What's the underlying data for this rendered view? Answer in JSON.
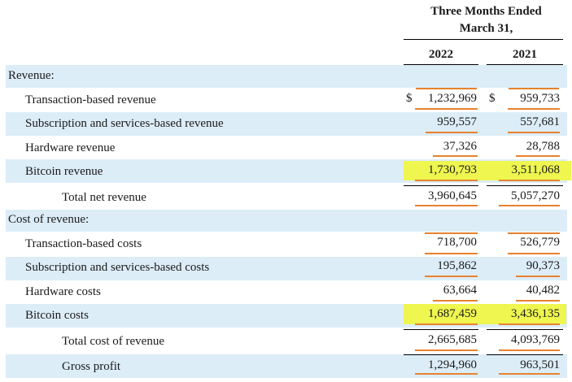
{
  "header": {
    "line1": "Three Months Ended",
    "line2": "March 31,",
    "col_2022": "2022",
    "col_2021": "2021"
  },
  "sections": {
    "revenue_label": "Revenue:",
    "cost_label": "Cost of revenue:"
  },
  "currency_symbol": "$",
  "rows": [
    {
      "label": "Transaction-based revenue",
      "v2022": "1,232,969",
      "v2021": "959,733"
    },
    {
      "label": "Subscription and services-based revenue",
      "v2022": "959,557",
      "v2021": "557,681"
    },
    {
      "label": "Hardware revenue",
      "v2022": "37,326",
      "v2021": "28,788"
    },
    {
      "label": "Bitcoin revenue",
      "v2022": "1,730,793",
      "v2021": "3,511,068"
    },
    {
      "label": "Total net revenue",
      "v2022": "3,960,645",
      "v2021": "5,057,270"
    },
    {
      "label": "Transaction-based costs",
      "v2022": "718,700",
      "v2021": "526,779"
    },
    {
      "label": "Subscription and services-based costs",
      "v2022": "195,862",
      "v2021": "90,373"
    },
    {
      "label": "Hardware costs",
      "v2022": "63,664",
      "v2021": "40,482"
    },
    {
      "label": "Bitcoin costs",
      "v2022": "1,687,459",
      "v2021": "3,436,135"
    },
    {
      "label": "Total cost of revenue",
      "v2022": "2,665,685",
      "v2021": "4,093,769"
    },
    {
      "label": "Gross profit",
      "v2022": "1,294,960",
      "v2021": "963,501"
    }
  ],
  "colors": {
    "row_band": "#dcedf8",
    "highlight": "#eef64f",
    "underline": "#e8822f"
  }
}
